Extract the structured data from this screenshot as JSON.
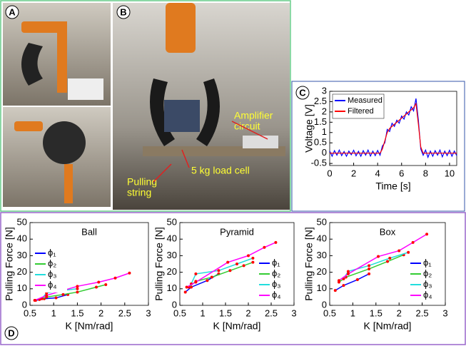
{
  "panel_labels": [
    "A",
    "B",
    "C",
    "D"
  ],
  "photo_annotations": {
    "amplifier": [
      "Amplifier",
      "circuit"
    ],
    "load_cell": "5 kg load cell",
    "pulling": [
      "Pulling",
      "string"
    ]
  },
  "chart_data": [
    {
      "type": "line",
      "x_label": "Time [s]",
      "y_label": "Voltage [V]",
      "legend": "upper left",
      "x": [
        0,
        0.2,
        0.4,
        0.6,
        0.8,
        1,
        1.2,
        1.4,
        1.6,
        1.8,
        2,
        2.2,
        2.4,
        2.6,
        2.8,
        3,
        3.2,
        3.4,
        3.6,
        3.8,
        4,
        4.2,
        4.4,
        4.6,
        4.8,
        5,
        5.2,
        5.4,
        5.6,
        5.8,
        6,
        6.2,
        6.4,
        6.6,
        6.8,
        7,
        7.2,
        7.4,
        7.6,
        7.8,
        8,
        8.2,
        8.4,
        8.6,
        8.8,
        9,
        9.2,
        9.4,
        9.6,
        9.8,
        10,
        10.2,
        10.4,
        10.6
      ],
      "series": [
        {
          "name": "Measured",
          "color": "#0000ff",
          "values": [
            0.1,
            -0.15,
            0.12,
            -0.1,
            0.15,
            -0.12,
            0.08,
            -0.15,
            0.1,
            -0.08,
            0.14,
            -0.13,
            0.09,
            -0.15,
            0.12,
            -0.1,
            0.15,
            -0.14,
            0.1,
            -0.12,
            0.13,
            -0.1,
            0.35,
            0.5,
            1.15,
            1.05,
            1.45,
            1.3,
            1.6,
            1.45,
            1.8,
            1.65,
            2.0,
            1.85,
            2.25,
            2.05,
            2.65,
            1.6,
            0.2,
            -0.1,
            0.15,
            -0.2,
            0.1,
            -0.15,
            0.12,
            -0.1,
            0.15,
            -0.18,
            0.1,
            -0.12,
            0.14,
            -0.15,
            0.1,
            -0.12
          ]
        },
        {
          "name": "Filtered",
          "color": "#ff0000",
          "values": [
            0,
            0,
            0,
            0,
            0,
            0,
            0,
            0,
            0,
            0,
            0,
            0,
            0,
            0,
            0,
            0,
            0,
            0,
            0,
            0,
            0,
            0,
            0.2,
            0.6,
            1.0,
            1.2,
            1.3,
            1.4,
            1.5,
            1.6,
            1.7,
            1.8,
            1.9,
            2.0,
            2.1,
            2.2,
            2.4,
            1.4,
            0.3,
            0,
            0,
            0,
            0,
            0,
            0,
            0,
            0,
            0,
            0,
            0,
            0,
            0,
            0,
            0
          ]
        }
      ],
      "xlim": [
        0,
        10.6
      ],
      "xticks": [
        0,
        2,
        4,
        6,
        8,
        10
      ],
      "ylim": [
        -0.6,
        3
      ],
      "yticks": [
        -0.5,
        0,
        0.5,
        1,
        1.5,
        2,
        2.5,
        3
      ]
    },
    {
      "type": "line",
      "title": "Ball",
      "x_label": "K [Nm/rad]",
      "y_label": "Pulling Force [N]",
      "legend": "center left",
      "marker_color": "#ff0000",
      "series": [
        {
          "name": "ϕ₁",
          "color": "#0000ff",
          "x": [
            0.62,
            0.8,
            1.05,
            1.3
          ],
          "values": [
            3,
            4,
            4.5,
            6.5
          ]
        },
        {
          "name": "ϕ₂",
          "color": "#33cc33",
          "x": [
            0.7,
            0.85,
            1.2,
            1.5,
            1.9,
            2.1
          ],
          "values": [
            3.5,
            5,
            6.5,
            8,
            11,
            12.5
          ]
        },
        {
          "name": "ϕ₃",
          "color": "#22dddd",
          "x": [
            0.75,
            0.85,
            1.2,
            1.5
          ],
          "values": [
            4,
            7.5,
            9,
            10
          ]
        },
        {
          "name": "ϕ₄",
          "color": "#ff00ff",
          "x": [
            0.6,
            0.85,
            1.5,
            1.95,
            2.3,
            2.6
          ],
          "values": [
            3,
            6,
            11.5,
            14,
            16.5,
            19.5
          ]
        }
      ],
      "xlim": [
        0.5,
        3
      ],
      "xticks": [
        0.5,
        1,
        1.5,
        2,
        2.5,
        3
      ],
      "ylim": [
        0,
        50
      ],
      "yticks": [
        0,
        10,
        20,
        30,
        40,
        50
      ]
    },
    {
      "type": "line",
      "title": "Pyramid",
      "x_label": "K [Nm/rad]",
      "y_label": "Pulling Force [N]",
      "legend": "lower right",
      "marker_color": "#ff0000",
      "series": [
        {
          "name": "ϕ₁",
          "color": "#0000ff",
          "x": [
            0.62,
            0.75,
            1.1,
            1.35
          ],
          "values": [
            8,
            11,
            15,
            19
          ]
        },
        {
          "name": "ϕ₂",
          "color": "#33cc33",
          "x": [
            0.7,
            0.85,
            1.2,
            1.6,
            1.9,
            2.1
          ],
          "values": [
            11,
            14.5,
            17,
            21,
            24,
            26
          ]
        },
        {
          "name": "ϕ₃",
          "color": "#22dddd",
          "x": [
            0.75,
            0.85,
            1.35,
            1.75,
            2.1
          ],
          "values": [
            13,
            19,
            21,
            25,
            28.5
          ]
        },
        {
          "name": "ϕ₄",
          "color": "#ff00ff",
          "x": [
            0.65,
            0.85,
            1.55,
            2.0,
            2.35,
            2.6
          ],
          "values": [
            11,
            14,
            26,
            30,
            35,
            38
          ]
        }
      ],
      "xlim": [
        0.5,
        3
      ],
      "xticks": [
        0.5,
        1,
        1.5,
        2,
        2.5,
        3
      ],
      "ylim": [
        0,
        50
      ],
      "yticks": [
        0,
        10,
        20,
        30,
        40,
        50
      ]
    },
    {
      "type": "line",
      "title": "Box",
      "x_label": "K [Nm/rad]",
      "y_label": "Pulling Force [N]",
      "legend": "lower right",
      "marker_color": "#ff0000",
      "series": [
        {
          "name": "ϕ₁",
          "color": "#0000ff",
          "x": [
            0.62,
            0.8,
            1.1,
            1.35
          ],
          "values": [
            9,
            12,
            15.5,
            19
          ]
        },
        {
          "name": "ϕ₂",
          "color": "#33cc33",
          "x": [
            0.7,
            0.85,
            1.35,
            1.75,
            2.1
          ],
          "values": [
            14,
            17,
            22,
            26.5,
            30.5
          ]
        },
        {
          "name": "ϕ₃",
          "color": "#22dddd",
          "x": [
            0.8,
            0.9,
            1.35,
            1.8,
            2.2
          ],
          "values": [
            16,
            20.5,
            24,
            28.5,
            32
          ]
        },
        {
          "name": "ϕ₄",
          "color": "#ff00ff",
          "x": [
            0.7,
            0.9,
            1.55,
            2.0,
            2.3,
            2.6
          ],
          "values": [
            15,
            19,
            29.5,
            33,
            38,
            43
          ]
        }
      ],
      "xlim": [
        0.5,
        3
      ],
      "xticks": [
        0.5,
        1,
        1.5,
        2,
        2.5,
        3
      ],
      "ylim": [
        0,
        50
      ],
      "yticks": [
        0,
        10,
        20,
        30,
        40,
        50
      ]
    }
  ]
}
